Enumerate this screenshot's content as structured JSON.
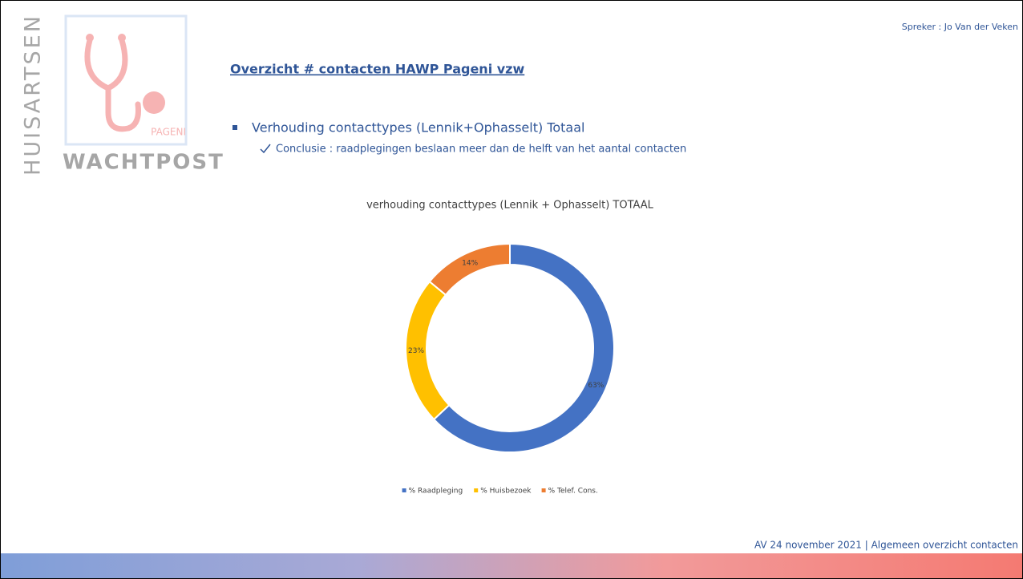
{
  "header": {
    "logo_vertical": "HUISARTSEN",
    "logo_small": "PAGENI",
    "logo_bottom": "WACHTPOST",
    "speaker": "Spreker : Jo Van der Veken",
    "title": "Overzicht # contacten HAWP Pageni vzw"
  },
  "bullets": {
    "main": "Verhouding contacttypes (Lennik+Ophasselt) Totaal",
    "sub": "Conclusie : raadplegingen beslaan meer dan de helft van het aantal contacten"
  },
  "chart_data": {
    "type": "donut",
    "title": "verhouding contacttypes (Lennik + Ophasselt) TOTAAL",
    "categories": [
      "% Raadpleging",
      "% Huisbezoek",
      "% Telef. Cons."
    ],
    "values": [
      63,
      23,
      14
    ],
    "value_labels": [
      "63%",
      "23%",
      "14%"
    ],
    "colors": [
      "#4472c4",
      "#ffc000",
      "#ed7d31"
    ],
    "legend": "bottom"
  },
  "footer": {
    "text": "AV 24 november 2021 | Algemeen overzicht contacten"
  }
}
